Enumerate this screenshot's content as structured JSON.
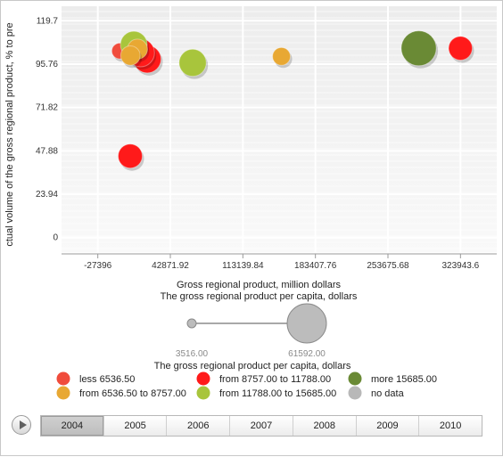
{
  "chart_data": {
    "type": "scatter",
    "subtype": "bubble",
    "xlabel": "Gross regional product, million dollars",
    "ylabel": "ctual volume of the gross regional product, % to pre",
    "xlim": [
      -62531,
      359078
    ],
    "ylim": [
      -8,
      127.7
    ],
    "x_ticks": [
      -27396,
      42871.92,
      113139.84,
      183407.76,
      253675.68,
      323943.6
    ],
    "x_tick_labels": [
      "-27396",
      "42871.92",
      "113139.84",
      "183407.76",
      "253675.68",
      "323943.6"
    ],
    "y_ticks": [
      0,
      23.94,
      47.88,
      71.82,
      95.76,
      119.7
    ],
    "y_tick_labels": [
      "0",
      "23.94",
      "47.88",
      "71.82",
      "95.76",
      "119.7"
    ],
    "grid": true,
    "size_variable": {
      "label": "The gross regional product per capita, dollars",
      "min": 3516.0,
      "max": 61592.0,
      "min_label": "3516.00",
      "max_label": "61592.00"
    },
    "legend_title": "The gross regional product per capita, dollars",
    "categories": [
      {
        "label": "less 6536.50",
        "color": "#f04c3c"
      },
      {
        "label": "from 6536.50 to 8757.00",
        "color": "#e8a833"
      },
      {
        "label": "from 8757.00 to 11788.00",
        "color": "#ff1a1a"
      },
      {
        "label": "from 11788.00 to 15685.00",
        "color": "#a8c53c"
      },
      {
        "label": "more 15685.00",
        "color": "#6a8a35"
      },
      {
        "label": "no data",
        "color": "#b8b8b8"
      }
    ],
    "points": [
      {
        "x": -6200,
        "y": 103.0,
        "size": 5000,
        "category": 0
      },
      {
        "x": 20500,
        "y": 98.5,
        "size": 14500,
        "category": 2
      },
      {
        "x": 14000,
        "y": 102.0,
        "size": 15000,
        "category": 2
      },
      {
        "x": 7500,
        "y": 106.5,
        "size": 13600,
        "category": 3
      },
      {
        "x": 11000,
        "y": 104.0,
        "size": 7500,
        "category": 1
      },
      {
        "x": 4200,
        "y": 100.5,
        "size": 7000,
        "category": 1
      },
      {
        "x": 64500,
        "y": 96.5,
        "size": 14000,
        "category": 3
      },
      {
        "x": 4000,
        "y": 45.0,
        "size": 10800,
        "category": 2
      },
      {
        "x": 150500,
        "y": 100.0,
        "size": 6000,
        "category": 1
      },
      {
        "x": 283500,
        "y": 104.5,
        "size": 25000,
        "category": 4
      },
      {
        "x": 323900,
        "y": 104.5,
        "size": 10400,
        "category": 2
      }
    ],
    "timeline": {
      "years": [
        "2004",
        "2005",
        "2006",
        "2007",
        "2008",
        "2009",
        "2010"
      ],
      "active": "2004"
    }
  }
}
